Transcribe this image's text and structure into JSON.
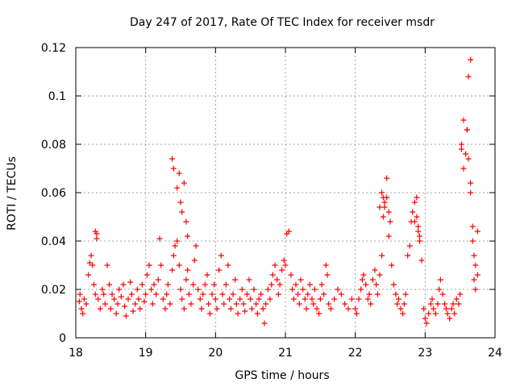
{
  "chart_data": {
    "type": "scatter",
    "title": "Day 247 of 2017, Rate Of TEC Index for receiver msdr",
    "xlabel": "GPS time / hours",
    "ylabel": "ROTI / TECUs",
    "xlim": [
      18,
      24
    ],
    "ylim": [
      0,
      0.12
    ],
    "x_ticks": [
      "18",
      "19",
      "20",
      "21",
      "22",
      "23",
      "24"
    ],
    "y_ticks": [
      "0",
      "0.02",
      "0.04",
      "0.06",
      "0.08",
      "0.1",
      "0.12"
    ],
    "grid": true,
    "marker": "plus",
    "series_color": "#ff0000",
    "series": [
      {
        "name": "ROTI",
        "x": [
          18.05,
          18.06,
          18.08,
          18.1,
          18.12,
          18.15,
          18.18,
          18.2,
          18.22,
          18.24,
          18.26,
          18.28,
          18.3,
          18.3,
          18.32,
          18.35,
          18.38,
          18.4,
          18.42,
          18.45,
          18.48,
          18.5,
          18.52,
          18.55,
          18.58,
          18.6,
          18.62,
          18.65,
          18.68,
          18.7,
          18.72,
          18.75,
          18.78,
          18.8,
          18.82,
          18.85,
          18.88,
          18.9,
          18.92,
          18.95,
          18.98,
          19.0,
          19.02,
          19.05,
          19.08,
          19.1,
          19.12,
          19.15,
          19.18,
          19.2,
          19.22,
          19.25,
          19.28,
          19.3,
          19.32,
          19.35,
          19.38,
          19.4,
          19.42,
          19.45,
          19.48,
          19.5,
          19.52,
          19.55,
          19.58,
          19.6,
          19.62,
          19.65,
          19.68,
          19.7,
          19.72,
          19.75,
          19.78,
          19.8,
          19.82,
          19.85,
          19.88,
          19.9,
          19.92,
          19.95,
          19.98,
          20.0,
          20.02,
          20.05,
          20.08,
          20.1,
          20.12,
          20.15,
          20.18,
          20.2,
          20.22,
          20.25,
          20.28,
          20.3,
          20.32,
          20.35,
          20.38,
          20.4,
          20.42,
          20.45,
          20.48,
          20.5,
          20.52,
          20.55,
          20.58,
          20.6,
          20.62,
          20.65,
          20.68,
          20.7,
          20.72,
          20.75,
          20.78,
          20.8,
          20.82,
          20.85,
          20.88,
          20.9,
          20.92,
          20.95,
          20.98,
          21.0,
          21.02,
          21.05,
          21.08,
          21.1,
          21.12,
          21.15,
          21.18,
          21.2,
          21.22,
          21.25,
          21.28,
          21.3,
          21.32,
          21.35,
          21.38,
          21.4,
          21.42,
          21.45,
          21.48,
          21.5,
          21.52,
          21.55,
          21.58,
          21.6,
          21.62,
          21.65,
          21.7,
          21.75,
          21.8,
          21.85,
          21.9,
          21.95,
          22.0,
          22.02,
          22.05,
          22.08,
          22.1,
          22.12,
          22.15,
          22.18,
          22.2,
          22.22,
          22.25,
          22.28,
          22.3,
          22.32,
          22.35,
          22.38,
          22.4,
          22.42,
          22.45,
          22.48,
          22.5,
          22.52,
          22.55,
          22.58,
          22.6,
          22.62,
          22.65,
          22.68,
          22.7,
          22.72,
          22.75,
          22.78,
          22.8,
          22.82,
          22.85,
          22.88,
          22.9,
          22.92,
          22.95,
          22.98,
          23.0,
          23.02,
          23.05,
          23.08,
          23.1,
          23.12,
          23.15,
          23.18,
          23.2,
          23.22,
          23.25,
          23.28,
          23.3,
          23.32,
          23.35,
          23.38,
          23.4,
          23.42,
          23.45,
          23.48,
          23.5,
          23.52,
          23.55,
          23.58,
          23.6,
          23.62,
          23.65,
          23.68,
          23.7,
          23.72,
          23.75,
          19.38,
          19.4,
          19.45,
          19.48,
          19.5,
          19.52,
          19.55,
          19.58,
          19.6,
          22.35,
          22.38,
          22.4,
          22.42,
          22.45,
          22.48,
          22.85,
          22.88,
          22.9,
          22.92,
          23.52,
          23.55,
          23.6,
          23.62,
          23.65,
          23.65,
          23.68,
          23.7,
          23.72,
          23.75,
          18.28
        ],
        "y": [
          0.015,
          0.018,
          0.012,
          0.01,
          0.016,
          0.014,
          0.026,
          0.031,
          0.034,
          0.03,
          0.022,
          0.018,
          0.043,
          0.041,
          0.016,
          0.012,
          0.02,
          0.018,
          0.014,
          0.03,
          0.022,
          0.012,
          0.018,
          0.016,
          0.01,
          0.014,
          0.02,
          0.017,
          0.022,
          0.013,
          0.009,
          0.016,
          0.023,
          0.018,
          0.011,
          0.014,
          0.02,
          0.016,
          0.012,
          0.022,
          0.015,
          0.018,
          0.026,
          0.03,
          0.02,
          0.014,
          0.022,
          0.018,
          0.024,
          0.041,
          0.03,
          0.016,
          0.012,
          0.018,
          0.022,
          0.014,
          0.028,
          0.034,
          0.038,
          0.04,
          0.03,
          0.02,
          0.016,
          0.012,
          0.024,
          0.028,
          0.018,
          0.014,
          0.022,
          0.032,
          0.038,
          0.02,
          0.016,
          0.012,
          0.018,
          0.022,
          0.026,
          0.014,
          0.01,
          0.018,
          0.022,
          0.016,
          0.012,
          0.028,
          0.034,
          0.018,
          0.014,
          0.022,
          0.03,
          0.016,
          0.012,
          0.018,
          0.024,
          0.014,
          0.01,
          0.016,
          0.02,
          0.014,
          0.011,
          0.018,
          0.024,
          0.016,
          0.012,
          0.02,
          0.014,
          0.01,
          0.016,
          0.018,
          0.012,
          0.006,
          0.014,
          0.02,
          0.016,
          0.022,
          0.026,
          0.03,
          0.024,
          0.018,
          0.022,
          0.028,
          0.032,
          0.03,
          0.043,
          0.044,
          0.026,
          0.02,
          0.016,
          0.022,
          0.018,
          0.014,
          0.024,
          0.02,
          0.016,
          0.012,
          0.018,
          0.022,
          0.016,
          0.014,
          0.02,
          0.012,
          0.01,
          0.016,
          0.022,
          0.018,
          0.03,
          0.026,
          0.014,
          0.012,
          0.016,
          0.02,
          0.018,
          0.014,
          0.012,
          0.016,
          0.012,
          0.01,
          0.016,
          0.02,
          0.024,
          0.026,
          0.022,
          0.016,
          0.018,
          0.014,
          0.024,
          0.028,
          0.022,
          0.018,
          0.026,
          0.034,
          0.05,
          0.054,
          0.058,
          0.052,
          0.048,
          0.03,
          0.022,
          0.018,
          0.014,
          0.016,
          0.012,
          0.01,
          0.014,
          0.018,
          0.034,
          0.038,
          0.048,
          0.052,
          0.056,
          0.058,
          0.044,
          0.04,
          0.032,
          0.012,
          0.008,
          0.006,
          0.01,
          0.014,
          0.016,
          0.012,
          0.01,
          0.014,
          0.02,
          0.024,
          0.018,
          0.014,
          0.012,
          0.01,
          0.008,
          0.012,
          0.014,
          0.01,
          0.016,
          0.014,
          0.018,
          0.08,
          0.09,
          0.076,
          0.086,
          0.074,
          0.06,
          0.046,
          0.034,
          0.03,
          0.026,
          0.074,
          0.07,
          0.062,
          0.068,
          0.056,
          0.052,
          0.064,
          0.048,
          0.042,
          0.054,
          0.06,
          0.058,
          0.056,
          0.066,
          0.042,
          0.048,
          0.05,
          0.046,
          0.042,
          0.078,
          0.07,
          0.086,
          0.108,
          0.115,
          0.064,
          0.04,
          0.024,
          0.02,
          0.044,
          0.044
        ]
      }
    ]
  }
}
